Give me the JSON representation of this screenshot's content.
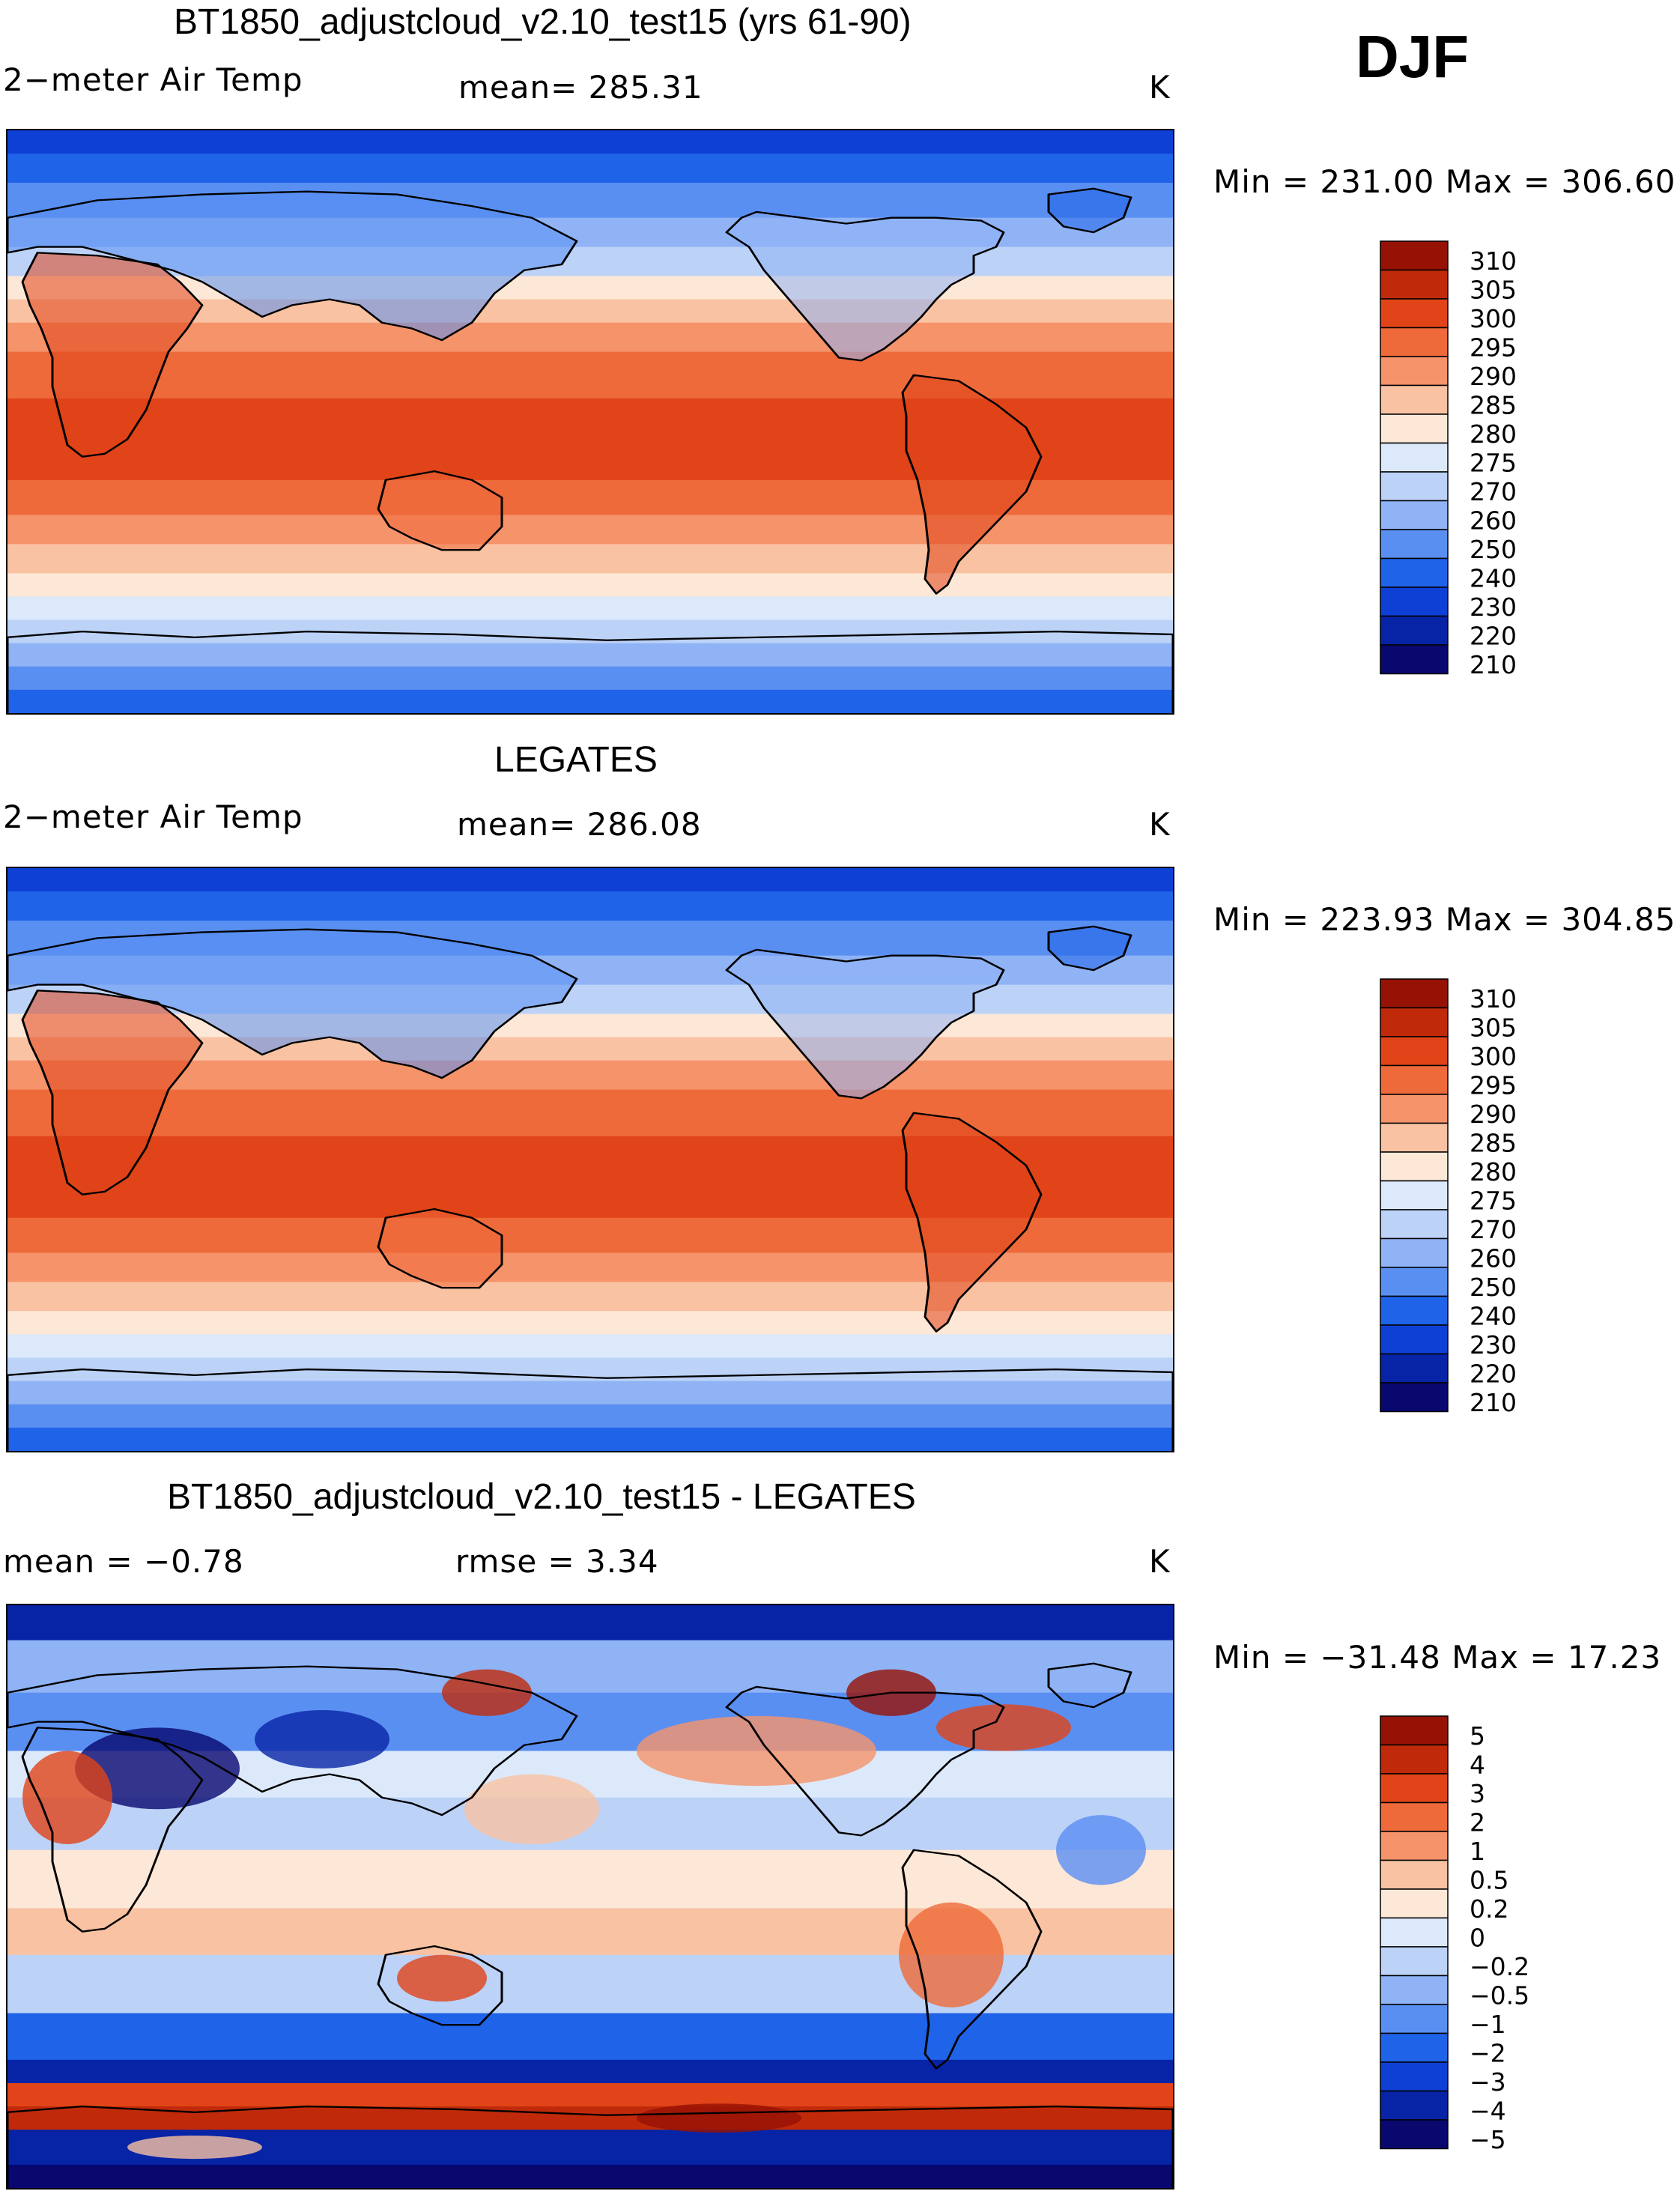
{
  "season": "DJF",
  "panels": [
    {
      "id": "model",
      "title": "BT1850_adjustcloud_v2.10_test15 (yrs 61-90)",
      "left_label": "2−meter Air Temp",
      "center_label": "mean=  285.31",
      "units": "K",
      "minmax": "Min  =  231.00  Max  =  306.60",
      "map_type": "absolute",
      "colorbar": {
        "colors": [
          "#08086f",
          "#0724a6",
          "#0e40d6",
          "#1f63e8",
          "#5a8ff2",
          "#8fb3f5",
          "#bcd2f7",
          "#dce9fb",
          "#fde7d6",
          "#f9c2a2",
          "#f5936a",
          "#ee6a3a",
          "#e04418",
          "#c02a0b",
          "#961205"
        ],
        "labels": [
          "310",
          "305",
          "300",
          "295",
          "290",
          "285",
          "280",
          "275",
          "270",
          "260",
          "250",
          "240",
          "230",
          "220",
          "210"
        ]
      }
    },
    {
      "id": "obs",
      "title": "LEGATES",
      "left_label": "2−meter Air Temp",
      "center_label": "mean=  286.08",
      "units": "K",
      "minmax": "Min  =  223.93  Max  =  304.85",
      "map_type": "absolute",
      "colorbar": {
        "colors": [
          "#08086f",
          "#0724a6",
          "#0e40d6",
          "#1f63e8",
          "#5a8ff2",
          "#8fb3f5",
          "#bcd2f7",
          "#dce9fb",
          "#fde7d6",
          "#f9c2a2",
          "#f5936a",
          "#ee6a3a",
          "#e04418",
          "#c02a0b",
          "#961205"
        ],
        "labels": [
          "310",
          "305",
          "300",
          "295",
          "290",
          "285",
          "280",
          "275",
          "270",
          "260",
          "250",
          "240",
          "230",
          "220",
          "210"
        ]
      }
    },
    {
      "id": "diff",
      "title": "BT1850_adjustcloud_v2.10_test15 - LEGATES",
      "left_label": "mean  =    −0.78",
      "center_label": "rmse  =     3.34",
      "units": "K",
      "minmax": "Min  =  −31.48  Max  =    17.23",
      "map_type": "difference",
      "colorbar": {
        "colors": [
          "#08086f",
          "#0724a6",
          "#0e40d6",
          "#1f63e8",
          "#5a8ff2",
          "#8fb3f5",
          "#bcd2f7",
          "#dce9fb",
          "#fde7d6",
          "#f9c2a2",
          "#f5936a",
          "#ee6a3a",
          "#e04418",
          "#c02a0b",
          "#961205"
        ],
        "labels": [
          "5",
          "4",
          "3",
          "2",
          "1",
          "0.5",
          "0.2",
          "0",
          "−0.2",
          "−0.5",
          "−1",
          "−2",
          "−3",
          "−4",
          "−5"
        ]
      }
    }
  ]
}
